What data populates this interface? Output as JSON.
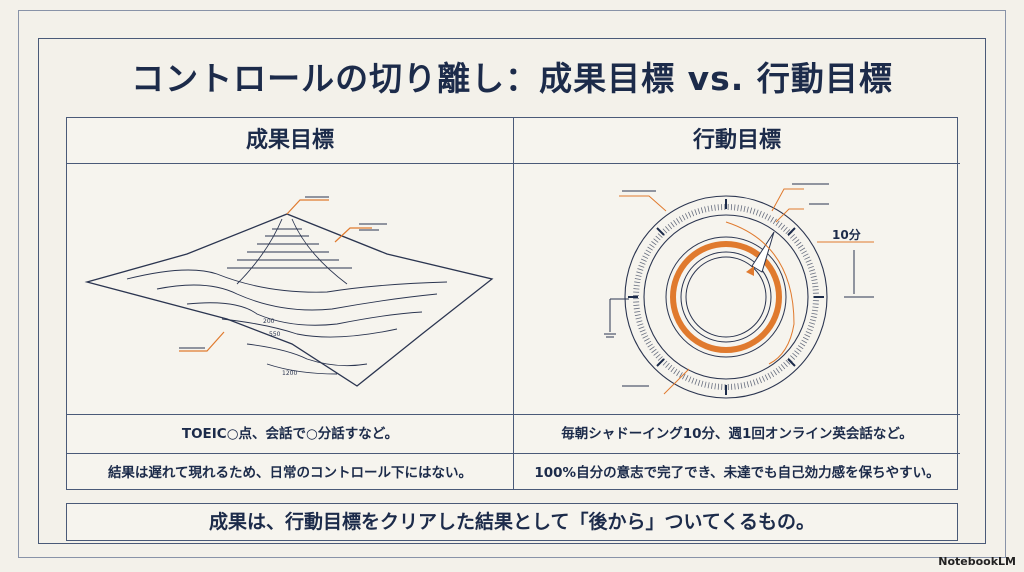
{
  "title": "コントロールの切り離し：成果目標 vs. 行動目標",
  "columns": [
    {
      "header": "成果目標",
      "illustration": "topographic-mountain",
      "contour_labels": [
        "200",
        "550",
        "1200"
      ],
      "rows": [
        "TOEIC○点、会話で○分話すなど。",
        "結果は遅れて現れるため、日常のコントロール下にはない。"
      ]
    },
    {
      "header": "行動目標",
      "illustration": "dial-gauge",
      "dial_label": "10分",
      "rows": [
        "毎朝シャドーイング10分、週1回オンライン英会話など。",
        "100%自分の意志で完了でき、未達でも自己効力感を保ちやすい。"
      ]
    }
  ],
  "conclusion": "成果は、行動目標をクリアした結果として「後から」ついてくるもの。",
  "branding": "NotebookLM",
  "colors": {
    "ink": "#1c2b4a",
    "accent": "#e07a2e",
    "background": "#f3f1ea"
  }
}
